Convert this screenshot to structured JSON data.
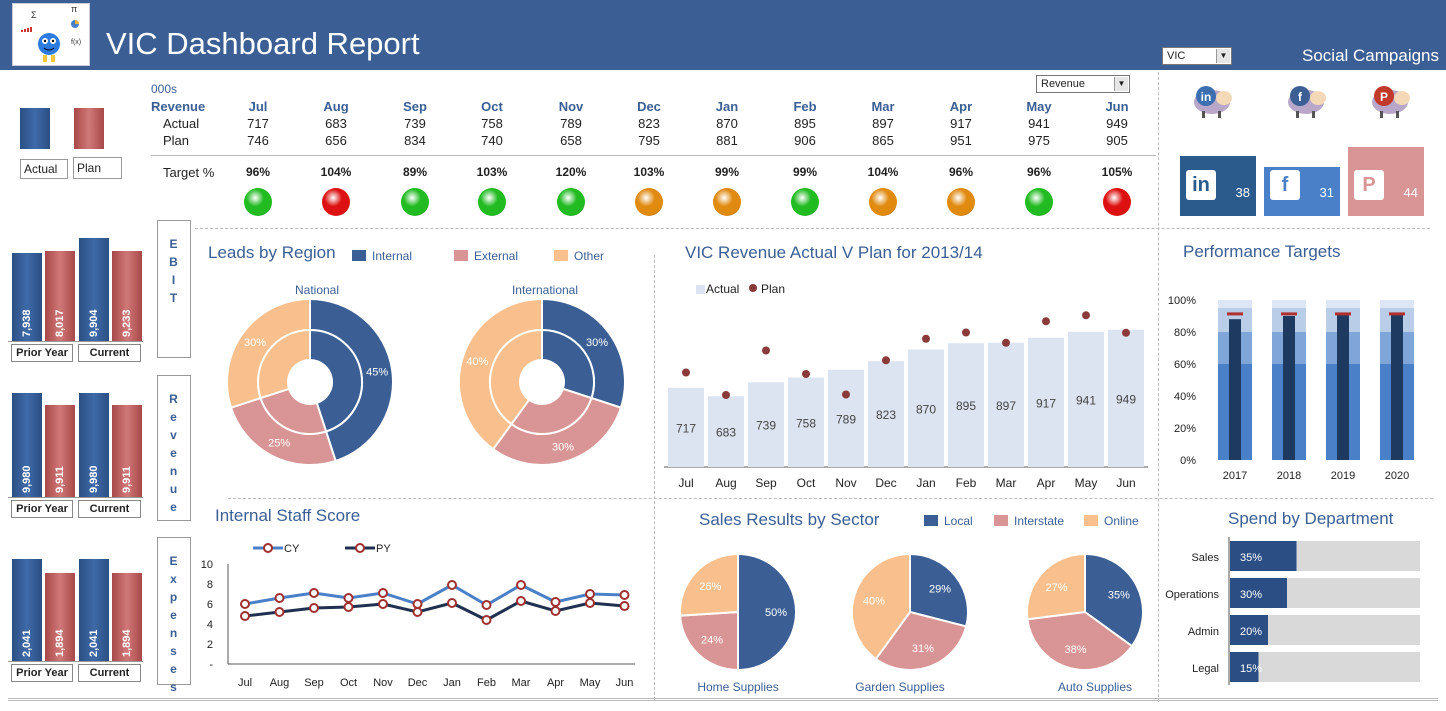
{
  "header": {
    "title": "VIC Dashboard Report",
    "region_select": "VIC",
    "social_title": "Social Campaigns"
  },
  "summary": {
    "units": "000s",
    "metric_select": "Revenue",
    "row_labels": {
      "metric": "Revenue",
      "actual": "Actual",
      "plan": "Plan",
      "target": "Target %"
    },
    "months": [
      "Jul",
      "Aug",
      "Sep",
      "Oct",
      "Nov",
      "Dec",
      "Jan",
      "Feb",
      "Mar",
      "Apr",
      "May",
      "Jun"
    ],
    "actual": [
      "717",
      "683",
      "739",
      "758",
      "789",
      "823",
      "870",
      "895",
      "897",
      "917",
      "941",
      "949"
    ],
    "plan": [
      "746",
      "656",
      "834",
      "740",
      "658",
      "795",
      "881",
      "906",
      "865",
      "951",
      "975",
      "905"
    ],
    "target": [
      "96%",
      "104%",
      "89%",
      "103%",
      "120%",
      "103%",
      "99%",
      "99%",
      "104%",
      "96%",
      "96%",
      "105%"
    ],
    "status_colors": [
      "#22bb22",
      "#dd1111",
      "#22bb22",
      "#22bb22",
      "#22bb22",
      "#e08a10",
      "#e08a10",
      "#22bb22",
      "#e08a10",
      "#e08a10",
      "#22bb22",
      "#dd1111"
    ]
  },
  "legend_boxes": {
    "actual": "Actual",
    "plan": "Plan"
  },
  "mini_charts": [
    {
      "label": "EBIT",
      "prior_label": "Prior Year",
      "current_label": "Current",
      "prior_actual": "7,938",
      "prior_plan": "8,017",
      "current_actual": "9,904",
      "current_plan": "9,233"
    },
    {
      "label": "Revenue",
      "prior_label": "Prior Year",
      "current_label": "Current",
      "prior_actual": "9,980",
      "prior_plan": "9,911",
      "current_actual": "9,980",
      "current_plan": "9,911"
    },
    {
      "label": "Expenses",
      "prior_label": "Prior Year",
      "current_label": "Current",
      "prior_actual": "2,041",
      "prior_plan": "1,894",
      "current_actual": "2,041",
      "current_plan": "1,894"
    }
  ],
  "social": [
    {
      "name": "LinkedIn",
      "count": "38",
      "color": "#2b5a8c"
    },
    {
      "name": "Facebook",
      "count": "31",
      "color": "#4a80c8"
    },
    {
      "name": "Pinterest",
      "count": "44",
      "color": "#d99595"
    }
  ],
  "leads": {
    "title": "Leads by Region",
    "legend": [
      "Internal",
      "External",
      "Other"
    ],
    "colors": [
      "#3b5f94",
      "#d99595",
      "#f9c08e"
    ],
    "national": {
      "title": "National",
      "labels": [
        "45%",
        "25%",
        "30%"
      ]
    },
    "international": {
      "title": "International",
      "labels": [
        "30%",
        "30%",
        "40%"
      ]
    }
  },
  "chart_data": [
    {
      "type": "bar",
      "title": "VIC Revenue Actual V Plan for 2013/14",
      "categories": [
        "Jul",
        "Aug",
        "Sep",
        "Oct",
        "Nov",
        "Dec",
        "Jan",
        "Feb",
        "Mar",
        "Apr",
        "May",
        "Jun"
      ],
      "series": [
        {
          "name": "Actual",
          "values": [
            717,
            683,
            739,
            758,
            789,
            823,
            870,
            895,
            897,
            917,
            941,
            949
          ]
        },
        {
          "name": "Plan",
          "values": [
            746,
            656,
            834,
            740,
            658,
            795,
            881,
            906,
            865,
            951,
            975,
            905
          ]
        }
      ],
      "ylim": [
        0,
        1200
      ]
    },
    {
      "type": "bar",
      "title": "Performance Targets",
      "categories": [
        "2017",
        "2018",
        "2019",
        "2020"
      ],
      "ytick_labels": [
        "100%",
        "80%",
        "60%",
        "40%",
        "20%",
        "0%"
      ],
      "series": [
        {
          "name": "Actual",
          "values": [
            88,
            90,
            92,
            91
          ]
        },
        {
          "name": "Target",
          "values": [
            91,
            91,
            91,
            91
          ]
        }
      ],
      "ylim": [
        0,
        100
      ]
    },
    {
      "type": "line",
      "title": "Internal Staff Score",
      "categories": [
        "Jul",
        "Aug",
        "Sep",
        "Oct",
        "Nov",
        "Dec",
        "Jan",
        "Feb",
        "Mar",
        "Apr",
        "May",
        "Jun"
      ],
      "ytick_labels": [
        "10",
        "8",
        "6",
        "4",
        "2",
        "-"
      ],
      "series": [
        {
          "name": "CY",
          "values": [
            6.0,
            6.6,
            7.1,
            6.6,
            7.1,
            6.0,
            7.9,
            5.9,
            7.9,
            6.2,
            7.0,
            6.9
          ]
        },
        {
          "name": "PY",
          "values": [
            4.8,
            5.2,
            5.6,
            5.7,
            6.0,
            5.2,
            6.1,
            4.4,
            6.3,
            5.3,
            6.1,
            5.8
          ]
        }
      ],
      "ylim": [
        0,
        10
      ]
    },
    {
      "type": "pie",
      "title": "Sales Results by Sector",
      "legend": [
        "Local",
        "Interstate",
        "Online"
      ],
      "colors": [
        "#3b5f94",
        "#d99595",
        "#f9c08e"
      ],
      "pies": [
        {
          "name": "Home Supplies",
          "values": [
            50,
            24,
            26
          ],
          "labels": [
            "50%",
            "24%",
            "26%"
          ]
        },
        {
          "name": "Garden Supplies",
          "values": [
            29,
            31,
            40
          ],
          "labels": [
            "29%",
            "31%",
            "40%"
          ]
        },
        {
          "name": "Auto Supplies",
          "values": [
            35,
            38,
            27
          ],
          "labels": [
            "35%",
            "38%",
            "27%"
          ]
        }
      ]
    },
    {
      "type": "bar",
      "title": "Spend by Department",
      "categories": [
        "Sales",
        "Operations",
        "Admin",
        "Legal"
      ],
      "values": [
        35,
        30,
        20,
        15
      ],
      "labels": [
        "35%",
        "30%",
        "20%",
        "15%"
      ],
      "ylim": [
        0,
        100
      ]
    }
  ]
}
